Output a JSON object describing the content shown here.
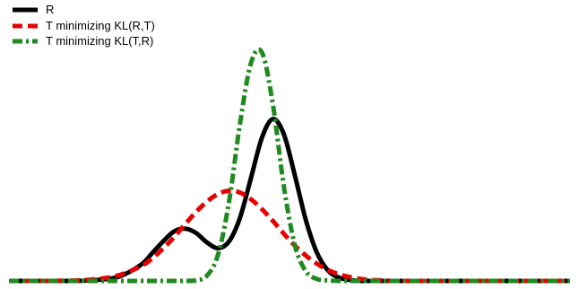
{
  "chart_data": {
    "type": "line",
    "title": "",
    "xlabel": "",
    "ylabel": "",
    "xlim": [
      -4.2,
      6.0
    ],
    "ylim": [
      0,
      0.55
    ],
    "axes_visible": false,
    "grid": false,
    "legend_position": "top-left",
    "x": [
      -4.2,
      -3.6,
      -3.0,
      -2.6,
      -2.2,
      -1.8,
      -1.6,
      -1.4,
      -1.2,
      -1.0,
      -0.8,
      -0.6,
      -0.4,
      -0.2,
      0.0,
      0.2,
      0.4,
      0.6,
      0.8,
      1.0,
      1.2,
      1.4,
      1.6,
      1.8,
      2.0,
      2.2,
      2.4,
      2.6,
      2.8,
      3.0,
      3.4,
      4.0,
      4.6,
      5.2,
      6.0
    ],
    "series": [
      {
        "name": "R",
        "color": "#000000",
        "dash": "solid",
        "values": [
          0.0,
          0.0,
          0.0,
          0.002,
          0.009,
          0.034,
          0.058,
          0.083,
          0.104,
          0.11,
          0.101,
          0.081,
          0.069,
          0.083,
          0.133,
          0.217,
          0.302,
          0.341,
          0.308,
          0.221,
          0.127,
          0.059,
          0.022,
          0.007,
          0.002,
          0.0,
          0.0,
          0.0,
          0.0,
          0.0,
          0.0,
          0.0,
          0.0,
          0.0,
          0.0
        ]
      },
      {
        "name": "T minimizing KL(R,T)",
        "color": "#e60000",
        "dash": "dashed",
        "values": [
          0.0,
          0.0,
          0.001,
          0.004,
          0.012,
          0.031,
          0.047,
          0.068,
          0.092,
          0.119,
          0.145,
          0.167,
          0.183,
          0.19,
          0.186,
          0.172,
          0.151,
          0.126,
          0.099,
          0.074,
          0.053,
          0.036,
          0.023,
          0.014,
          0.008,
          0.004,
          0.002,
          0.001,
          0.0,
          0.0,
          0.0,
          0.0,
          0.0,
          0.0,
          0.0
        ]
      },
      {
        "name": "T minimizing KL(T,R)",
        "color": "#1f8a1f",
        "dash": "dash-dot",
        "values": [
          0.0,
          0.0,
          0.0,
          0.0,
          0.0,
          0.0,
          0.0,
          0.0,
          0.0,
          0.0,
          0.001,
          0.011,
          0.055,
          0.166,
          0.331,
          0.459,
          0.481,
          0.37,
          0.197,
          0.074,
          0.02,
          0.004,
          0.001,
          0.0,
          0.0,
          0.0,
          0.0,
          0.0,
          0.0,
          0.0,
          0.0,
          0.0,
          0.0,
          0.0,
          0.0
        ]
      }
    ]
  }
}
